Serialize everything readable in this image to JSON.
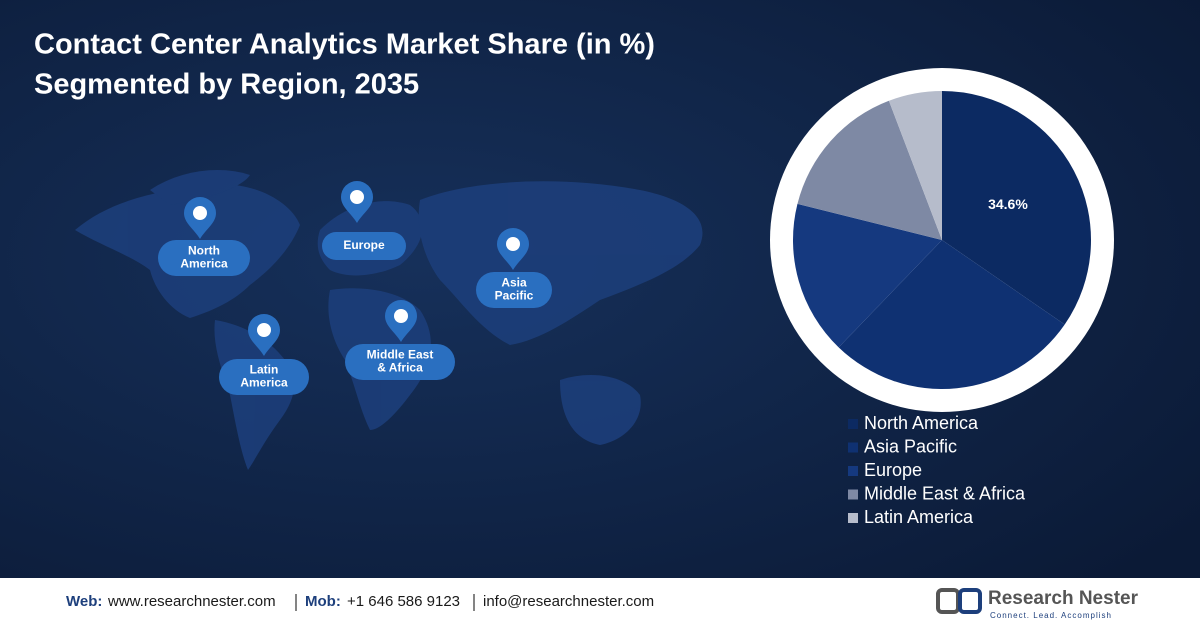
{
  "chart_data": {
    "type": "pie",
    "title": "Contact Center Analytics Market Share (in %)",
    "subtitle": "Segmented by Region, 2035",
    "categories": [
      "North America",
      "Asia Pacific",
      "Europe",
      "Middle East & Africa",
      "Latin America"
    ],
    "values": [
      34.6,
      27.6,
      16.7,
      15.3,
      5.8
    ],
    "value_labels": [
      "34.6%",
      null,
      null,
      null,
      null
    ],
    "colors": [
      "#0c2a62",
      "#0f3172",
      "#15397f",
      "#7e89a4",
      "#b6bccb"
    ]
  },
  "map_labels": [
    {
      "lines": [
        "North",
        "America"
      ]
    },
    {
      "lines": [
        "Europe"
      ]
    },
    {
      "lines": [
        "Asia",
        "Pacific"
      ]
    },
    {
      "lines": [
        "Middle East",
        "& Africa"
      ]
    },
    {
      "lines": [
        "Latin",
        "America"
      ]
    }
  ],
  "footer": {
    "web_label": "Web:",
    "web": "www.researchnester.com",
    "mob_label": "Mob:",
    "mob": "+1 646 586 9123",
    "email": "info@researchnester.com"
  },
  "logo": {
    "name": "Research Nester",
    "tagline": "Connect. Lead. Accomplish"
  }
}
